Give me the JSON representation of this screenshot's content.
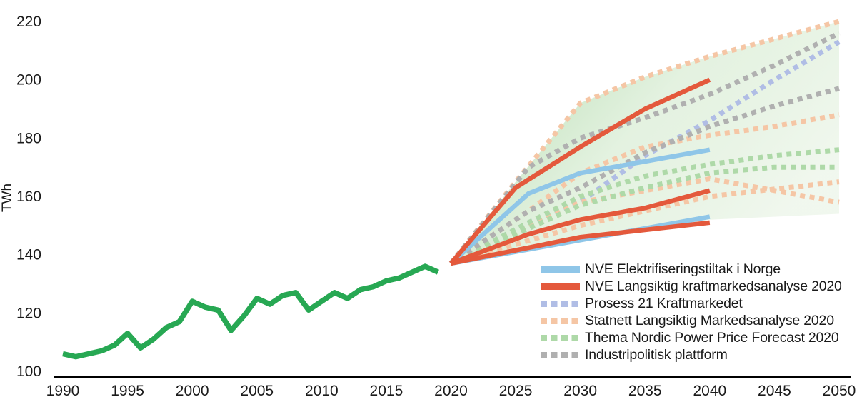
{
  "chart_data": {
    "type": "line",
    "title": "",
    "xlabel": "",
    "ylabel": "TWh",
    "xlim": [
      1990,
      2050
    ],
    "ylim": [
      100,
      220
    ],
    "grid": false,
    "legend_position": "inside-bottom-right",
    "x_ticks": [
      1990,
      1995,
      2000,
      2005,
      2010,
      2015,
      2020,
      2025,
      2030,
      2035,
      2040,
      2045,
      2050
    ],
    "y_ticks": [
      100,
      120,
      140,
      160,
      180,
      200,
      220
    ],
    "historical": {
      "color": "#27a853",
      "x": [
        1990,
        1991,
        1992,
        1993,
        1994,
        1995,
        1996,
        1997,
        1998,
        1999,
        2000,
        2001,
        2002,
        2003,
        2004,
        2005,
        2006,
        2007,
        2008,
        2009,
        2010,
        2011,
        2012,
        2013,
        2014,
        2015,
        2016,
        2017,
        2018,
        2019
      ],
      "values": [
        106,
        105,
        106,
        107,
        109,
        113,
        108,
        111,
        115,
        117,
        124,
        122,
        121,
        114,
        119,
        125,
        123,
        126,
        127,
        121,
        124,
        127,
        125,
        128,
        129,
        131,
        132,
        134,
        136,
        134
      ]
    },
    "band": {
      "from": "#8fca88",
      "to": "#eef6eb",
      "top": [
        [
          2020,
          137
        ],
        [
          2025,
          165
        ],
        [
          2030,
          192
        ],
        [
          2035,
          201
        ],
        [
          2040,
          208
        ],
        [
          2045,
          214
        ],
        [
          2050,
          220
        ]
      ],
      "bottom": [
        [
          2020,
          137
        ],
        [
          2040,
          152
        ],
        [
          2050,
          154
        ]
      ]
    },
    "series": [
      {
        "legend": "NVE Elektrifiseringstiltak i Norge",
        "style": "solid",
        "color": "#8fc6e8",
        "lines": [
          [
            [
              2020,
              137
            ],
            [
              2026,
              161
            ],
            [
              2030,
              168
            ],
            [
              2035,
              172
            ],
            [
              2040,
              176
            ]
          ],
          [
            [
              2020,
              137
            ],
            [
              2030,
              145
            ],
            [
              2040,
              153
            ]
          ]
        ]
      },
      {
        "legend": "NVE Langsiktig kraftmarkedsanalyse 2020",
        "style": "solid",
        "color": "#e4593c",
        "lines": [
          [
            [
              2020,
              137
            ],
            [
              2025,
              163
            ],
            [
              2030,
              177
            ],
            [
              2035,
              190
            ],
            [
              2040,
              200
            ]
          ],
          [
            [
              2020,
              137
            ],
            [
              2026,
              147
            ],
            [
              2030,
              152
            ],
            [
              2035,
              156
            ],
            [
              2040,
              162
            ]
          ],
          [
            [
              2020,
              137
            ],
            [
              2030,
              146
            ],
            [
              2040,
              151
            ]
          ]
        ]
      },
      {
        "legend": "Prosess 21 Kraftmarkedet",
        "style": "dotted",
        "color": "#b0bde5",
        "lines": [
          [
            [
              2020,
              137
            ],
            [
              2026,
              151
            ],
            [
              2030,
              158
            ],
            [
              2035,
              174
            ],
            [
              2040,
              186
            ],
            [
              2045,
              200
            ],
            [
              2050,
              213
            ]
          ]
        ]
      },
      {
        "legend": "Statnett Langsiktig Markedsanalyse 2020",
        "style": "dotted",
        "color": "#f5c6a5",
        "lines": [
          [
            [
              2020,
              137
            ],
            [
              2025,
              165
            ],
            [
              2030,
              192
            ],
            [
              2035,
              201
            ],
            [
              2040,
              208
            ],
            [
              2045,
              214
            ],
            [
              2050,
              220
            ]
          ],
          [
            [
              2020,
              137
            ],
            [
              2026,
              155
            ],
            [
              2030,
              168
            ],
            [
              2035,
              177
            ],
            [
              2040,
              181
            ],
            [
              2045,
              184
            ],
            [
              2050,
              188
            ]
          ],
          [
            [
              2020,
              137
            ],
            [
              2030,
              158
            ],
            [
              2035,
              162
            ],
            [
              2040,
              166
            ],
            [
              2045,
              162
            ],
            [
              2050,
              158
            ]
          ],
          [
            [
              2020,
              137
            ],
            [
              2030,
              150
            ],
            [
              2035,
              155
            ],
            [
              2040,
              160
            ],
            [
              2050,
              165
            ]
          ]
        ]
      },
      {
        "legend": "Thema Nordic Power Price Forecast 2020",
        "style": "dotted",
        "color": "#aed9a8",
        "lines": [
          [
            [
              2020,
              137
            ],
            [
              2026,
              151
            ],
            [
              2030,
              160
            ],
            [
              2035,
              167
            ],
            [
              2040,
              171
            ],
            [
              2045,
              174
            ],
            [
              2050,
              176
            ]
          ],
          [
            [
              2020,
              137
            ],
            [
              2030,
              157
            ],
            [
              2035,
              163
            ],
            [
              2040,
              168
            ],
            [
              2045,
              170
            ],
            [
              2050,
              170
            ]
          ]
        ]
      },
      {
        "legend": "Industripolitisk plattform",
        "style": "dotted",
        "color": "#b0b0b0",
        "lines": [
          [
            [
              2020,
              137
            ],
            [
              2026,
              170
            ],
            [
              2030,
              180
            ],
            [
              2035,
              187
            ],
            [
              2040,
              195
            ],
            [
              2045,
              205
            ],
            [
              2050,
              216
            ]
          ],
          [
            [
              2020,
              137
            ],
            [
              2026,
              155
            ],
            [
              2030,
              163
            ],
            [
              2035,
              175
            ],
            [
              2040,
              184
            ],
            [
              2045,
              191
            ],
            [
              2050,
              197
            ]
          ]
        ]
      }
    ]
  }
}
